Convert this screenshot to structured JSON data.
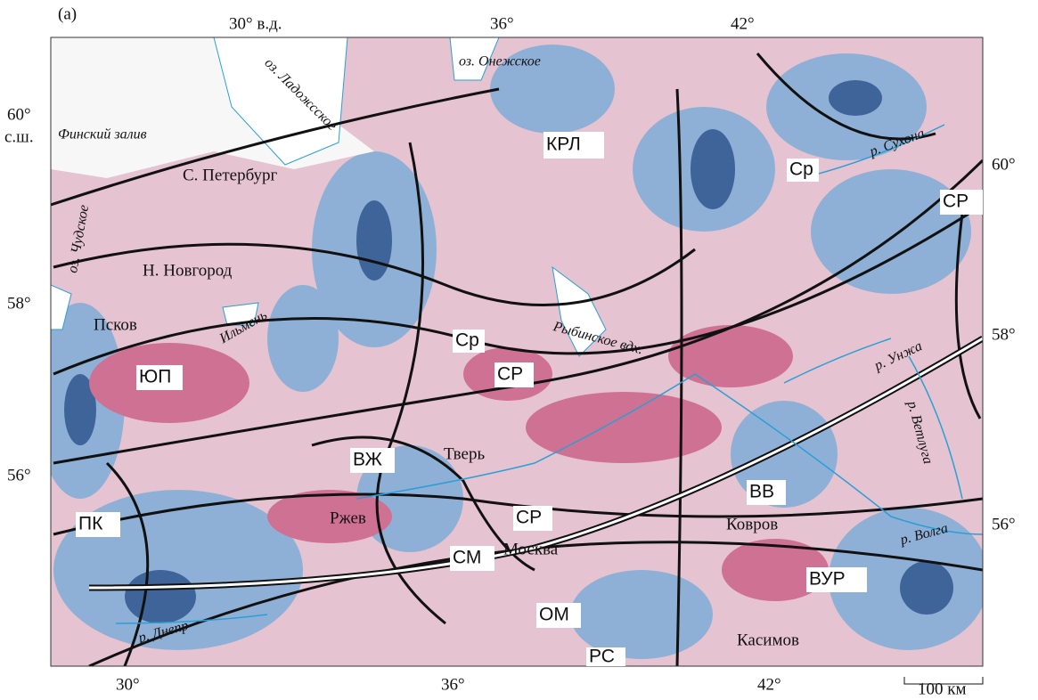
{
  "panel_label": "(a)",
  "graticule": {
    "top": [
      "30° в.д.",
      "36°",
      "42°"
    ],
    "left": [
      "60°",
      "с.ш.",
      "58°",
      "56°"
    ],
    "right": [
      "60°",
      "58°",
      "56°"
    ],
    "bottom": [
      "30°",
      "36°",
      "42°"
    ]
  },
  "scale_bar": "100 км",
  "water": [
    "оз. Ладожсское",
    "оз. Онежское",
    "Финский залив",
    "оз. Чудское",
    "Ильмень",
    "Рыбинское вдх."
  ],
  "rivers": [
    "р. Сухона",
    "р. Унжа",
    "р. Ветлуга",
    "р. Волга",
    "р. Днепр"
  ],
  "cities": [
    "С. Петербург",
    "Н. Новгород",
    "Псков",
    "Тверь",
    "Ржев",
    "Москва",
    "Ковров",
    "Касимов"
  ],
  "structures": [
    "КРЛ",
    "Ср",
    "СР",
    "ЮП",
    "Ср",
    "СР",
    "ВЖ",
    "СР",
    "СМ",
    "ОМ",
    "РС",
    "ВВ",
    "ВУР",
    "ПК"
  ]
}
